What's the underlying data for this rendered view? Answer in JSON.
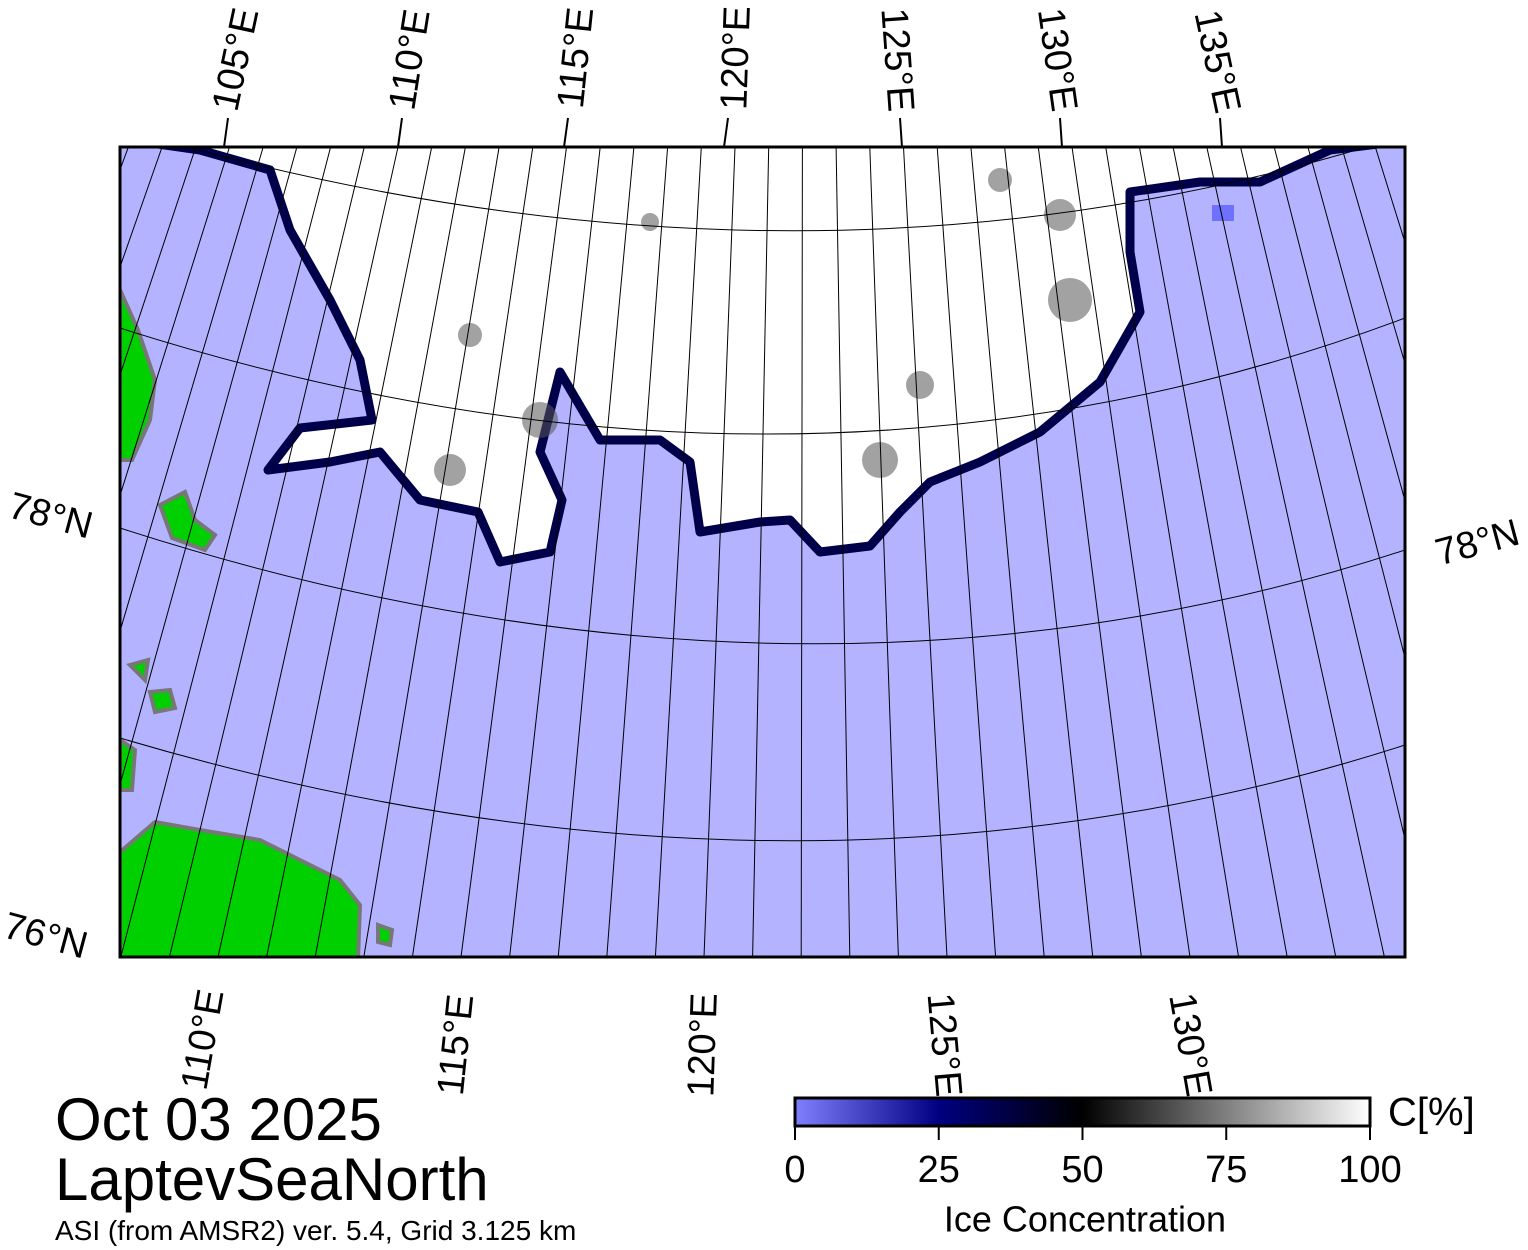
{
  "map": {
    "top_labels": [
      "105°E",
      "110°E",
      "115°E",
      "120°E",
      "125°E",
      "130°E",
      "135°E"
    ],
    "bottom_labels": [
      "110°E",
      "115°E",
      "120°E",
      "125°E",
      "130°E"
    ],
    "left_labels": [
      "78°N",
      "76°N"
    ],
    "right_labels": [
      "78°N"
    ]
  },
  "caption": {
    "date": "Oct 03 2025",
    "region": "LaptevSeaNorth",
    "source": "ASI (from AMSR2) ver. 5.4,  Grid 3.125 km"
  },
  "colorbar": {
    "title": "Ice Concentration",
    "unit": "C[%]",
    "range": [
      0,
      100
    ],
    "ticks": [
      0,
      25,
      50,
      75,
      100
    ]
  }
}
